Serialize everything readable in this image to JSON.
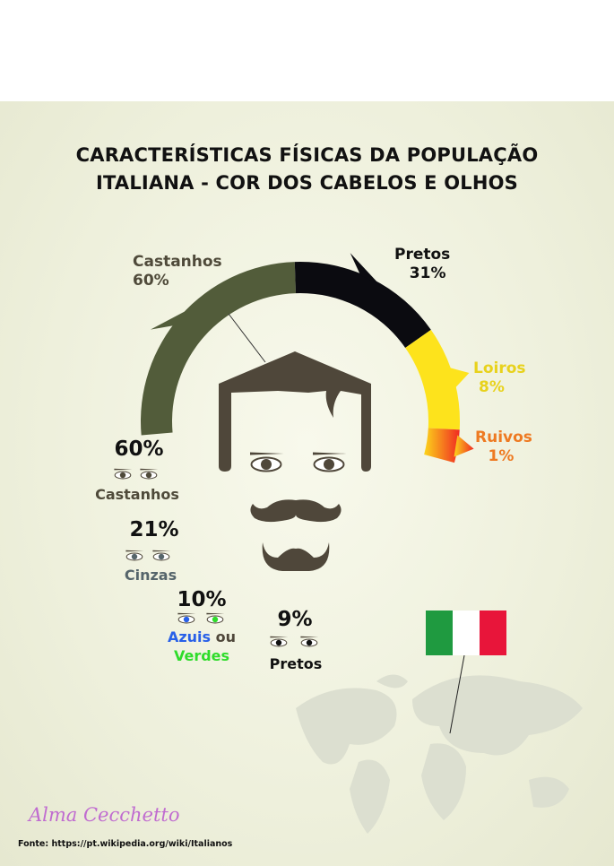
{
  "title_line1": "CARACTERÍSTICAS FÍSICAS DA POPULAÇÃO",
  "title_line2": "ITALIANA - COR DOS CABELOS E OLHOS",
  "chart_data": [
    {
      "type": "pie",
      "subject": "Cabelos",
      "categories": [
        "Castanhos",
        "Pretos",
        "Loiros",
        "Ruivos"
      ],
      "values": [
        60,
        31,
        8,
        1
      ],
      "labels": [
        "60%",
        "31%",
        "8%",
        "1%"
      ],
      "colors": [
        "#525c3a",
        "#0b0b10",
        "#fde31c",
        "#f57a22"
      ],
      "style": "semi-donut arc"
    },
    {
      "type": "table",
      "subject": "Olhos",
      "categories": [
        "Castanhos",
        "Cinzas",
        "Azuis ou Verdes",
        "Pretos"
      ],
      "values": [
        60,
        21,
        10,
        9
      ],
      "labels": [
        "60%",
        "21%",
        "10%",
        "9%"
      ]
    }
  ],
  "hair": {
    "castanhos": {
      "name": "Castanhos",
      "pct": "60%",
      "color": "#4f4a3a"
    },
    "pretos": {
      "name": "Pretos",
      "pct": "31%",
      "color": "#111111"
    },
    "loiros": {
      "name": "Loiros",
      "pct": "8%",
      "color": "#e8d21c"
    },
    "ruivos": {
      "name": "Ruivos",
      "pct": "1%",
      "color": "#ee7a22"
    }
  },
  "eyes": {
    "castanhos": {
      "pct": "60%",
      "name": "Castanhos",
      "color": "#4f4a3a"
    },
    "cinzas": {
      "pct": "21%",
      "name": "Cinzas",
      "color": "#56656b"
    },
    "azuis_verdes": {
      "pct": "10%",
      "name_a": "Azuis",
      "name_ou": " ou",
      "name_b": "Verdes",
      "color_a": "#2860e8",
      "color_b": "#2edc2a"
    },
    "pretos": {
      "pct": "9%",
      "name": "Pretos",
      "color": "#111111"
    }
  },
  "flag_colors": [
    "#1f9a40",
    "#ffffff",
    "#e8153a"
  ],
  "signature": "Alma Cecchetto",
  "source": "Fonte: https://pt.wikipedia.org/wiki/Italianos"
}
